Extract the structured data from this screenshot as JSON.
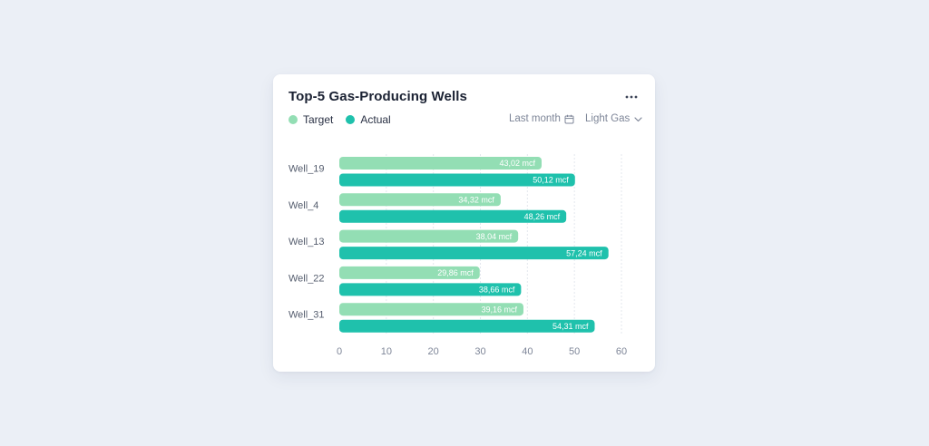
{
  "card": {
    "title": "Top-5 Gas-Producing Wells",
    "more_icon": "more-horizontal-icon"
  },
  "legend": {
    "target": "Target",
    "actual": "Actual"
  },
  "filters": {
    "period": "Last month",
    "period_icon": "calendar-icon",
    "gas_type": "Light Gas",
    "gas_type_icon": "chevron-down-icon"
  },
  "colors": {
    "target": "#93DEB4",
    "actual": "#1FC1AC",
    "background": "#EBEFF6",
    "card": "#FFFFFF"
  },
  "chart_data": {
    "type": "bar",
    "orientation": "horizontal",
    "categories": [
      "Well_19",
      "Well_4",
      "Well_13",
      "Well_22",
      "Well_31"
    ],
    "series": [
      {
        "name": "Target",
        "values": [
          43.02,
          34.32,
          38.04,
          29.86,
          39.16
        ],
        "labels": [
          "43,02 mcf",
          "34,32 mcf",
          "38,04 mcf",
          "29,86 mcf",
          "39,16 mcf"
        ]
      },
      {
        "name": "Actual",
        "values": [
          50.12,
          48.26,
          57.24,
          38.66,
          54.31
        ],
        "labels": [
          "50,12 mcf",
          "48,26 mcf",
          "57,24 mcf",
          "38,66 mcf",
          "54,31 mcf"
        ]
      }
    ],
    "xlim": [
      0,
      60
    ],
    "xticks": [
      "0",
      "10",
      "20",
      "30",
      "40",
      "50",
      "60"
    ],
    "grid": true,
    "legend_position": "top-left"
  }
}
